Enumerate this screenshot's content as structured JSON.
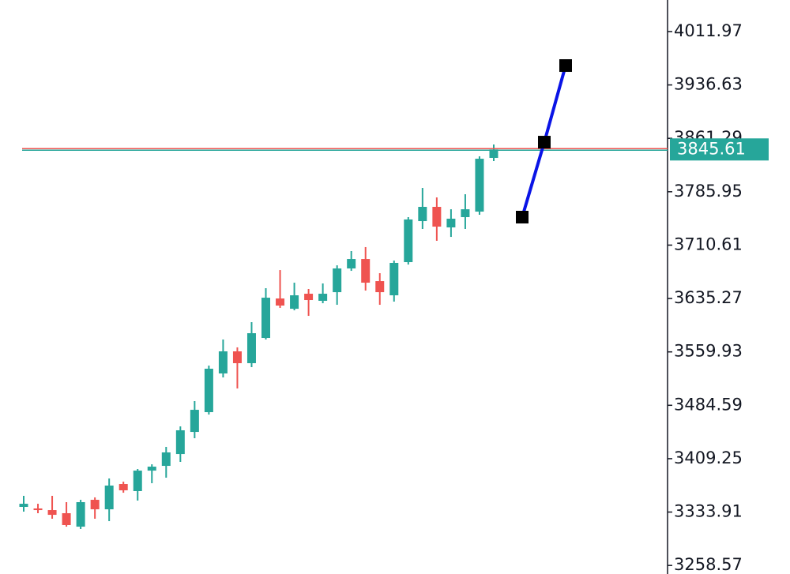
{
  "chart_data": {
    "type": "candlestick",
    "open": [
      3341.2,
      3339.0,
      3336.7,
      3332.3,
      3313.3,
      3351.2,
      3337.8,
      3373.5,
      3363.5,
      3392.4,
      3399.1,
      3415.8,
      3447.0,
      3474.9,
      3529.5,
      3560.7,
      3544.0,
      3579.6,
      3635.3,
      3620.8,
      3642.0,
      3632.0,
      3644.2,
      3677.7,
      3691.0,
      3659.8,
      3639.8,
      3686.6,
      3744.5,
      3764.6,
      3735.6,
      3750.1,
      3757.9,
      3833.7
    ],
    "high": [
      3356.8,
      3345.6,
      3356.8,
      3347.9,
      3351.2,
      3354.6,
      3381.3,
      3376.8,
      3394.7,
      3401.3,
      3425.9,
      3454.8,
      3490.5,
      3540.6,
      3577.4,
      3566.3,
      3601.9,
      3649.8,
      3675.4,
      3657.6,
      3648.7,
      3656.5,
      3682.1,
      3702.2,
      3707.8,
      3671.0,
      3688.8,
      3750.1,
      3791.3,
      3777.9,
      3761.2,
      3782.4,
      3835.9,
      3852.6
    ],
    "low": [
      3334.5,
      3332.3,
      3324.5,
      3313.3,
      3310.0,
      3324.5,
      3321.1,
      3361.2,
      3350.1,
      3374.6,
      3382.4,
      3404.7,
      3438.1,
      3471.5,
      3523.9,
      3508.3,
      3538.4,
      3577.4,
      3622.0,
      3618.6,
      3610.8,
      3628.6,
      3626.4,
      3674.3,
      3646.5,
      3626.4,
      3630.9,
      3683.2,
      3733.4,
      3716.7,
      3722.2,
      3733.4,
      3753.4,
      3829.2
    ],
    "close": [
      3345.6,
      3336.7,
      3330.0,
      3315.6,
      3347.9,
      3337.8,
      3371.3,
      3364.6,
      3392.4,
      3398.0,
      3418.1,
      3449.3,
      3478.2,
      3536.2,
      3560.7,
      3544.0,
      3586.3,
      3636.4,
      3625.3,
      3639.8,
      3633.1,
      3642.0,
      3677.7,
      3691.0,
      3657.6,
      3644.2,
      3685.5,
      3746.8,
      3764.6,
      3736.7,
      3747.9,
      3761.2,
      3832.5,
      3845.61
    ],
    "up_color": "#26a69a",
    "down_color": "#ef5350",
    "current_price": 3845.61,
    "trendline": {
      "color": "#0a14e6",
      "values": [
        3750.1,
        3855.9,
        3964.0
      ]
    },
    "ylim": [
      3246.5,
      4056.5
    ],
    "yticks": [
      3258.57,
      3333.91,
      3409.25,
      3484.59,
      3559.93,
      3635.27,
      3710.61,
      3785.95,
      3861.29,
      3936.63,
      4011.97
    ]
  }
}
